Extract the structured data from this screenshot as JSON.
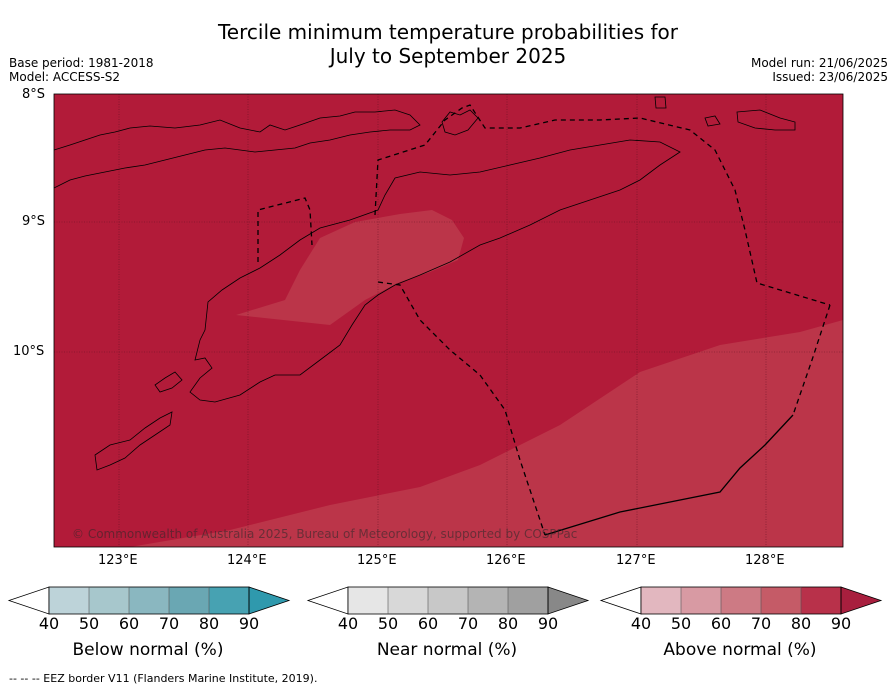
{
  "title_line1": "Tercile minimum temperature probabilities for",
  "title_line2": "July to September 2025",
  "base_period": "Base period: 1981-2018",
  "model": "Model: ACCESS-S2",
  "model_run": "Model run: 21/06/2025",
  "issued": "Issued: 23/06/2025",
  "copyright": "© Commonwealth of Australia 2025, Bureau of Meteorology, supported by COSPPac",
  "footer": "--  --  -- EEZ border V11 (Flanders Marine Institute, 2019).",
  "lat_labels": [
    "8°S",
    "9°S",
    "10°S"
  ],
  "lon_labels": [
    "123°E",
    "124°E",
    "125°E",
    "126°E",
    "127°E",
    "128°E"
  ],
  "colorbars": [
    {
      "label": "Below normal (%)",
      "ticks": [
        "40",
        "50",
        "60",
        "70",
        "80",
        "90"
      ],
      "colors": [
        "#ffffff",
        "#bdd3d9",
        "#a7c7cc",
        "#8ab7c0",
        "#6aa7b3",
        "#47a2b2",
        "#2f99ad"
      ]
    },
    {
      "label": "Near normal (%)",
      "ticks": [
        "40",
        "50",
        "60",
        "70",
        "80",
        "90"
      ],
      "colors": [
        "#ffffff",
        "#e6e6e6",
        "#d8d8d8",
        "#c8c8c8",
        "#b4b4b4",
        "#a0a0a0",
        "#888888"
      ]
    },
    {
      "label": "Above normal (%)",
      "ticks": [
        "40",
        "50",
        "60",
        "70",
        "80",
        "90"
      ],
      "colors": [
        "#ffffff",
        "#e2b7bf",
        "#d89aa3",
        "#cd7a84",
        "#c55b67",
        "#b8314a",
        "#a81f3e"
      ]
    }
  ],
  "map_colors": {
    "high": "#b21b39",
    "medium": "#bb3549",
    "ocean_frame": "#ffffff"
  }
}
